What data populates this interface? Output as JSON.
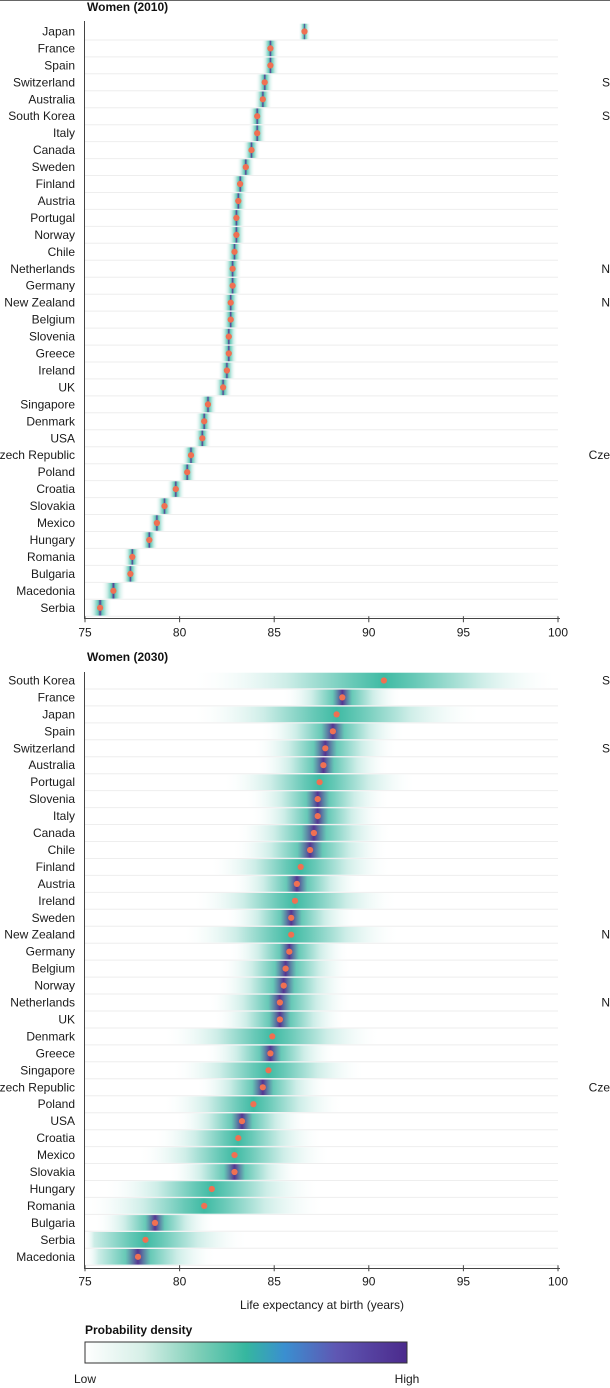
{
  "chart_data": [
    {
      "type": "scatter",
      "title": "Women (2010)",
      "xlim": [
        75,
        100
      ],
      "xticks": [
        "75",
        "80",
        "85",
        "90",
        "95",
        "100"
      ],
      "series_style": "point estimate with probability-density band",
      "categories": [
        "Japan",
        "France",
        "Spain",
        "Switzerland",
        "Australia",
        "South Korea",
        "Italy",
        "Canada",
        "Sweden",
        "Finland",
        "Austria",
        "Portugal",
        "Norway",
        "Chile",
        "Netherlands",
        "Germany",
        "New Zealand",
        "Belgium",
        "Slovenia",
        "Greece",
        "Ireland",
        "UK",
        "Singapore",
        "Denmark",
        "USA",
        "Czech Republic",
        "Poland",
        "Croatia",
        "Slovakia",
        "Mexico",
        "Hungary",
        "Romania",
        "Bulgaria",
        "Macedonia",
        "Serbia"
      ],
      "values": [
        86.6,
        84.8,
        84.8,
        84.5,
        84.4,
        84.1,
        84.1,
        83.8,
        83.5,
        83.2,
        83.1,
        83.0,
        83.0,
        82.9,
        82.8,
        82.8,
        82.7,
        82.7,
        82.6,
        82.6,
        82.5,
        82.3,
        81.5,
        81.3,
        81.2,
        80.6,
        80.4,
        79.8,
        79.2,
        78.8,
        78.4,
        77.5,
        77.4,
        76.5,
        75.8
      ],
      "spread": [
        0.1,
        0.15,
        0.15,
        0.15,
        0.15,
        0.15,
        0.15,
        0.15,
        0.15,
        0.15,
        0.15,
        0.15,
        0.15,
        0.15,
        0.15,
        0.15,
        0.15,
        0.15,
        0.15,
        0.15,
        0.15,
        0.15,
        0.15,
        0.15,
        0.15,
        0.15,
        0.15,
        0.15,
        0.15,
        0.15,
        0.15,
        0.15,
        0.15,
        0.2,
        0.2
      ]
    },
    {
      "type": "scatter",
      "title": "Women (2030)",
      "xlim": [
        75,
        100
      ],
      "xticks": [
        "75",
        "80",
        "85",
        "90",
        "95",
        "100"
      ],
      "xlabel": "Life expectancy at birth (years)",
      "series_style": "point estimate with probability-density band",
      "categories": [
        "South Korea",
        "France",
        "Japan",
        "Spain",
        "Switzerland",
        "Australia",
        "Portugal",
        "Slovenia",
        "Italy",
        "Canada",
        "Chile",
        "Finland",
        "Austria",
        "Ireland",
        "Sweden",
        "New Zealand",
        "Germany",
        "Belgium",
        "Norway",
        "Netherlands",
        "UK",
        "Denmark",
        "Greece",
        "Singapore",
        "Czech Republic",
        "Poland",
        "USA",
        "Croatia",
        "Mexico",
        "Slovakia",
        "Hungary",
        "Romania",
        "Bulgaria",
        "Serbia",
        "Macedonia"
      ],
      "values": [
        90.8,
        88.6,
        88.3,
        88.1,
        87.7,
        87.6,
        87.4,
        87.3,
        87.3,
        87.1,
        86.9,
        86.4,
        86.2,
        86.1,
        85.9,
        85.9,
        85.8,
        85.6,
        85.5,
        85.3,
        85.3,
        84.9,
        84.8,
        84.7,
        84.4,
        83.9,
        83.3,
        83.1,
        82.9,
        82.9,
        81.7,
        81.3,
        78.7,
        78.2,
        77.8
      ],
      "spread": [
        3.2,
        1.0,
        2.4,
        1.2,
        1.2,
        1.1,
        1.6,
        1.2,
        1.1,
        1.3,
        1.3,
        1.5,
        1.1,
        1.7,
        1.1,
        1.8,
        1.0,
        1.1,
        1.1,
        1.2,
        1.1,
        1.8,
        1.1,
        1.6,
        1.1,
        1.5,
        1.1,
        1.4,
        1.6,
        1.1,
        1.8,
        2.0,
        1.0,
        1.7,
        1.3
      ]
    }
  ],
  "cut_labels": {
    "p1": [
      "",
      "",
      "",
      "S",
      "",
      "S",
      "",
      "",
      "",
      "",
      "",
      "",
      "",
      "",
      "N",
      "",
      "N",
      "",
      "",
      "",
      "",
      "",
      "",
      "",
      "",
      "Cze",
      "",
      "",
      "",
      "",
      "",
      "",
      "",
      "",
      ""
    ],
    "p2": [
      "S",
      "",
      "",
      "",
      "S",
      "",
      "",
      "",
      "",
      "",
      "",
      "",
      "",
      "",
      "",
      "N",
      "",
      "",
      "",
      "N",
      "",
      "",
      "",
      "",
      "Cze",
      "",
      "",
      "",
      "",
      "",
      "",
      "",
      "",
      "",
      ""
    ]
  },
  "legend": {
    "title": "Probability density",
    "low": "Low",
    "high": "High",
    "colors": [
      "#ffffff",
      "#d6efe7",
      "#7fcfb8",
      "#35b79f",
      "#3a8fd0",
      "#5f57b3",
      "#4b2a8c"
    ]
  },
  "colors": {
    "point": "#f07052",
    "band_mid": "#35b79f",
    "band_dark": "#4b2a8c"
  }
}
